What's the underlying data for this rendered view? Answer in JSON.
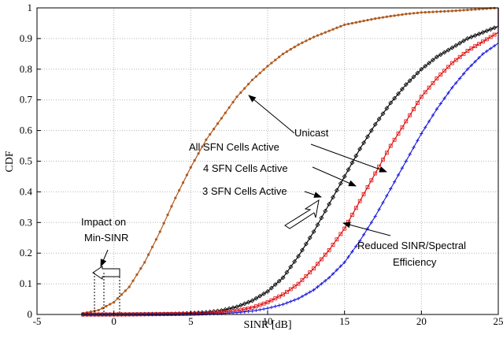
{
  "chart_data": {
    "type": "line",
    "xlabel": "SINR [dB]",
    "ylabel": "CDF",
    "xlim": [
      -5,
      25
    ],
    "ylim": [
      0,
      1
    ],
    "x_ticks": [
      "-5",
      "0",
      "5",
      "10",
      "15",
      "20",
      "25"
    ],
    "y_ticks": [
      "0",
      "0.1",
      "0.2",
      "0.3",
      "0.4",
      "0.5",
      "0.6",
      "0.7",
      "0.8",
      "0.9",
      "1"
    ],
    "grid": true,
    "series": [
      {
        "name": "Unicast",
        "color": "#b05a1e",
        "marker": "dot",
        "points": [
          [
            -2,
            0.004
          ],
          [
            -1,
            0.014
          ],
          [
            0,
            0.04
          ],
          [
            1,
            0.09
          ],
          [
            2,
            0.17
          ],
          [
            3,
            0.27
          ],
          [
            4,
            0.38
          ],
          [
            5,
            0.48
          ],
          [
            6,
            0.57
          ],
          [
            7,
            0.64
          ],
          [
            8,
            0.71
          ],
          [
            9,
            0.765
          ],
          [
            10,
            0.81
          ],
          [
            11,
            0.85
          ],
          [
            12,
            0.88
          ],
          [
            13,
            0.905
          ],
          [
            14,
            0.925
          ],
          [
            15,
            0.945
          ],
          [
            16,
            0.955
          ],
          [
            17,
            0.965
          ],
          [
            18,
            0.973
          ],
          [
            19,
            0.98
          ],
          [
            20,
            0.985
          ],
          [
            22,
            0.99
          ],
          [
            25,
            1.0
          ]
        ]
      },
      {
        "name": "All SFN Cells Active",
        "color": "#000000",
        "marker": "diamond",
        "points": [
          [
            -2,
            0
          ],
          [
            0,
            0
          ],
          [
            2,
            0.001
          ],
          [
            4,
            0.002
          ],
          [
            5,
            0.004
          ],
          [
            6,
            0.007
          ],
          [
            7,
            0.013
          ],
          [
            8,
            0.025
          ],
          [
            9,
            0.045
          ],
          [
            10,
            0.075
          ],
          [
            11,
            0.12
          ],
          [
            12,
            0.19
          ],
          [
            13,
            0.27
          ],
          [
            14,
            0.36
          ],
          [
            15,
            0.45
          ],
          [
            16,
            0.54
          ],
          [
            17,
            0.62
          ],
          [
            18,
            0.69
          ],
          [
            19,
            0.75
          ],
          [
            20,
            0.8
          ],
          [
            21,
            0.84
          ],
          [
            22,
            0.87
          ],
          [
            23,
            0.9
          ],
          [
            24,
            0.92
          ],
          [
            25,
            0.94
          ],
          [
            25,
            1.0
          ]
        ]
      },
      {
        "name": "4 SFN Cells Active",
        "color": "#e01010",
        "marker": "square",
        "points": [
          [
            -2,
            0
          ],
          [
            0,
            0
          ],
          [
            3,
            0.001
          ],
          [
            5,
            0.002
          ],
          [
            6,
            0.004
          ],
          [
            7,
            0.007
          ],
          [
            8,
            0.012
          ],
          [
            9,
            0.022
          ],
          [
            10,
            0.04
          ],
          [
            11,
            0.065
          ],
          [
            12,
            0.1
          ],
          [
            13,
            0.15
          ],
          [
            14,
            0.21
          ],
          [
            15,
            0.28
          ],
          [
            16,
            0.37
          ],
          [
            17,
            0.46
          ],
          [
            18,
            0.55
          ],
          [
            19,
            0.63
          ],
          [
            20,
            0.71
          ],
          [
            21,
            0.77
          ],
          [
            22,
            0.82
          ],
          [
            23,
            0.86
          ],
          [
            24,
            0.89
          ],
          [
            25,
            0.92
          ],
          [
            25,
            1.0
          ]
        ]
      },
      {
        "name": "3 SFN Cells Active",
        "color": "#2020e0",
        "marker": "plus",
        "points": [
          [
            -2,
            0
          ],
          [
            0,
            0
          ],
          [
            5,
            0.001
          ],
          [
            7,
            0.003
          ],
          [
            8,
            0.006
          ],
          [
            9,
            0.011
          ],
          [
            10,
            0.02
          ],
          [
            11,
            0.033
          ],
          [
            12,
            0.052
          ],
          [
            13,
            0.08
          ],
          [
            14,
            0.12
          ],
          [
            15,
            0.17
          ],
          [
            16,
            0.24
          ],
          [
            17,
            0.32
          ],
          [
            18,
            0.41
          ],
          [
            19,
            0.5
          ],
          [
            20,
            0.59
          ],
          [
            21,
            0.67
          ],
          [
            22,
            0.74
          ],
          [
            23,
            0.8
          ],
          [
            24,
            0.85
          ],
          [
            25,
            0.885
          ],
          [
            25,
            1.0
          ]
        ]
      }
    ],
    "annotations": [
      {
        "id": "unicast",
        "text": "Unicast"
      },
      {
        "id": "all",
        "text": "All SFN Cells Active"
      },
      {
        "id": "four",
        "text": "4 SFN Cells Active"
      },
      {
        "id": "three",
        "text": "3 SFN Cells Active"
      },
      {
        "id": "impact1",
        "text": "Impact on"
      },
      {
        "id": "impact2",
        "text": "Min-SINR"
      },
      {
        "id": "reduced1",
        "text": "Reduced SINR/Spectral"
      },
      {
        "id": "reduced2",
        "text": "Efficiency"
      }
    ]
  }
}
